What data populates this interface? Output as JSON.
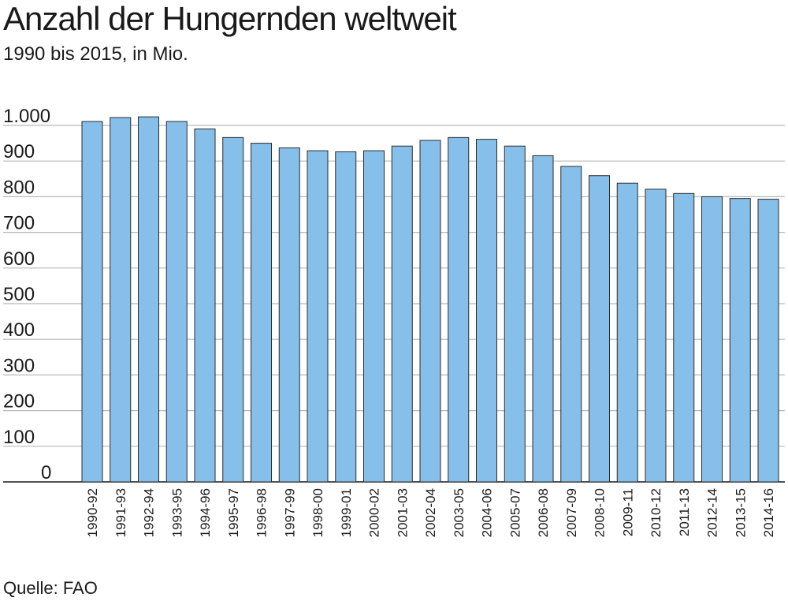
{
  "chart_data": {
    "type": "bar",
    "title": "Anzahl der Hungernden weltweit",
    "subtitle": "1990 bis 2015, in Mio.",
    "source": "Quelle: FAO",
    "xlabel": "",
    "ylabel": "",
    "ylim": [
      0,
      1000
    ],
    "yticks": [
      0,
      100,
      200,
      300,
      400,
      500,
      600,
      700,
      800,
      900,
      1000
    ],
    "ytick_labels": [
      "0",
      "100",
      "200",
      "300",
      "400",
      "500",
      "600",
      "700",
      "800",
      "900",
      "1.000"
    ],
    "grid": true,
    "bar_color": "#86c0ea",
    "bar_stroke": "#2a2a2a",
    "grid_color": "#b8b8b8",
    "categories": [
      "1990-92",
      "1991-93",
      "1992-94",
      "1993-95",
      "1994-96",
      "1995-97",
      "1996-98",
      "1997-99",
      "1998-00",
      "1999-01",
      "2000-02",
      "2001-03",
      "2002-04",
      "2003-05",
      "2004-06",
      "2005-07",
      "2006-08",
      "2007-09",
      "2008-10",
      "2009-11",
      "2010-12",
      "2011-13",
      "2012-14",
      "2013-15",
      "2014-16"
    ],
    "values": [
      1011,
      1022,
      1024,
      1011,
      990,
      966,
      950,
      937,
      929,
      926,
      929,
      942,
      958,
      966,
      961,
      942,
      915,
      885,
      859,
      838,
      821,
      809,
      800,
      795,
      793
    ]
  }
}
